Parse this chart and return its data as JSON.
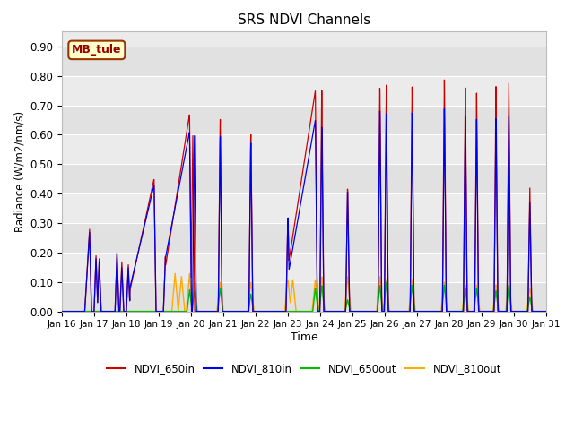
{
  "title": "SRS NDVI Channels",
  "xlabel": "Time",
  "ylabel": "Radiance (W/m2/nm/s)",
  "annotation": "MB_tule",
  "ylim": [
    0.0,
    0.95
  ],
  "yticks": [
    0.0,
    0.1,
    0.2,
    0.3,
    0.4,
    0.5,
    0.6,
    0.7,
    0.8,
    0.9
  ],
  "colors": {
    "NDVI_650in": "#cc0000",
    "NDVI_810in": "#0000ee",
    "NDVI_650out": "#00bb00",
    "NDVI_810out": "#ffaa00"
  },
  "bg_color": "#ebebeb",
  "annotation_bg": "#ffffcc",
  "annotation_border": "#993300"
}
